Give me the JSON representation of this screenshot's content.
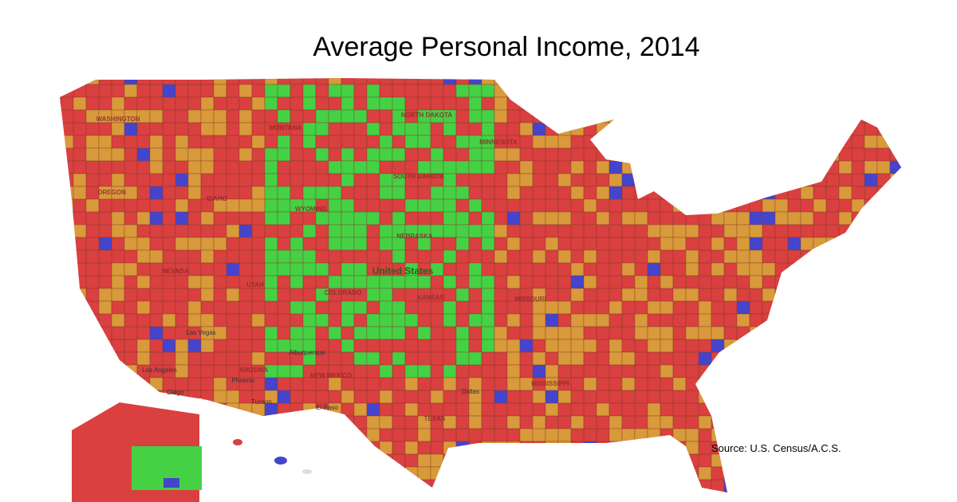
{
  "header": {
    "title": "Average Personal Income, 2014"
  },
  "footer": {
    "source": "Source: U.S. Census/A.C.S."
  },
  "map": {
    "labels": [
      "WASHINGTON",
      "MONTANA",
      "NORTH DAKOTA",
      "MINNESOTA",
      "SOUTH DAKOTA",
      "WYOMING",
      "OREGON",
      "IDAHO",
      "NEBRASKA",
      "United States",
      "NEVADA",
      "UTAH",
      "COLORADO",
      "KANSAS",
      "MISSOURI",
      "ARIZONA",
      "NEW MEXICO",
      "TEXAS",
      "MISSISSIPPI",
      "Las Vegas",
      "Los Angeles",
      "Phoenix",
      "Tucson",
      "El Paso",
      "Albuquerque",
      "Dallas",
      "Diego"
    ]
  }
}
